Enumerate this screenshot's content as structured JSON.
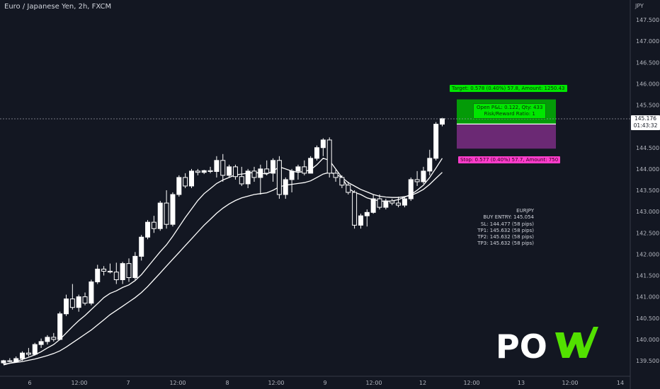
{
  "header": {
    "title": "Euro / Japanese Yen, 2h, FXCM",
    "currency": "JPY"
  },
  "price_scale": {
    "ticks": [
      "147.500",
      "147.000",
      "146.500",
      "146.000",
      "145.500",
      "145.000",
      "144.500",
      "144.000",
      "143.500",
      "143.000",
      "142.500",
      "142.000",
      "141.500",
      "141.000",
      "140.500",
      "140.000",
      "139.500"
    ],
    "last_price": "145.176",
    "countdown": "01:43:32"
  },
  "time_scale": {
    "ticks": [
      "6",
      "12:00",
      "7",
      "12:00",
      "8",
      "12:00",
      "9",
      "12:00",
      "12",
      "12:00",
      "13",
      "12:00",
      "14"
    ]
  },
  "position_tool": {
    "target_text": "Target: 0.578 (0.40%) 57.8, Amount: 1250.43",
    "stop_text": "Stop: 0.577 (0.40%) 57.7, Amount: 750",
    "pnl_line1": "Open P&L: 0.122, Qty: 433",
    "pnl_line2": "Risk/Reward Ratio: 1",
    "entry": 145.054,
    "target": 145.632,
    "stop": 144.477,
    "profit_color": "#00c800",
    "loss_color": "#7b2d82"
  },
  "signal_info": {
    "symbol": "EURJPY",
    "buy_entry": "BUY ENTRY: 145.054",
    "sl": "SL: 144.477 (58 pips)",
    "tp1": "TP1: 145.632 (58 pips)",
    "tp2": "TP2: 145.632 (58 pips)",
    "tp3": "TP3: 145.632 (58 pips)"
  },
  "logo": {
    "text": "PO",
    "accent_color": "#52e000"
  },
  "colors": {
    "background": "#131722",
    "candle_up": "#ffffff",
    "candle_down": "#ffffff",
    "ma_color": "#ffffff"
  },
  "chart_data": {
    "type": "candlestick",
    "symbol": "EURJPY",
    "interval": "2h",
    "ylim": [
      139.4,
      147.8
    ],
    "candles": [
      {
        "o": 139.45,
        "h": 139.52,
        "l": 139.42,
        "c": 139.5
      },
      {
        "o": 139.5,
        "h": 139.56,
        "l": 139.46,
        "c": 139.48
      },
      {
        "o": 139.48,
        "h": 139.6,
        "l": 139.45,
        "c": 139.55
      },
      {
        "o": 139.55,
        "h": 139.72,
        "l": 139.5,
        "c": 139.68
      },
      {
        "o": 139.68,
        "h": 139.8,
        "l": 139.6,
        "c": 139.65
      },
      {
        "o": 139.65,
        "h": 139.92,
        "l": 139.62,
        "c": 139.88
      },
      {
        "o": 139.88,
        "h": 140.02,
        "l": 139.8,
        "c": 139.95
      },
      {
        "o": 139.95,
        "h": 140.1,
        "l": 139.88,
        "c": 140.05
      },
      {
        "o": 140.05,
        "h": 140.15,
        "l": 139.95,
        "c": 140.0
      },
      {
        "o": 140.0,
        "h": 140.65,
        "l": 139.98,
        "c": 140.6
      },
      {
        "o": 140.6,
        "h": 141.05,
        "l": 140.55,
        "c": 140.95
      },
      {
        "o": 140.95,
        "h": 141.3,
        "l": 140.7,
        "c": 140.75
      },
      {
        "o": 140.75,
        "h": 141.05,
        "l": 140.65,
        "c": 141.0
      },
      {
        "o": 141.0,
        "h": 141.1,
        "l": 140.8,
        "c": 140.85
      },
      {
        "o": 140.85,
        "h": 141.4,
        "l": 140.8,
        "c": 141.35
      },
      {
        "o": 141.35,
        "h": 141.75,
        "l": 141.3,
        "c": 141.65
      },
      {
        "o": 141.65,
        "h": 141.72,
        "l": 141.5,
        "c": 141.6
      },
      {
        "o": 141.6,
        "h": 141.78,
        "l": 141.55,
        "c": 141.58
      },
      {
        "o": 141.58,
        "h": 141.8,
        "l": 141.3,
        "c": 141.4
      },
      {
        "o": 141.4,
        "h": 141.82,
        "l": 141.3,
        "c": 141.78
      },
      {
        "o": 141.78,
        "h": 141.9,
        "l": 141.35,
        "c": 141.45
      },
      {
        "o": 141.45,
        "h": 142.05,
        "l": 141.4,
        "c": 141.95
      },
      {
        "o": 141.95,
        "h": 142.45,
        "l": 141.85,
        "c": 142.4
      },
      {
        "o": 142.4,
        "h": 142.8,
        "l": 142.35,
        "c": 142.75
      },
      {
        "o": 142.75,
        "h": 142.9,
        "l": 142.5,
        "c": 142.6
      },
      {
        "o": 142.6,
        "h": 143.25,
        "l": 142.55,
        "c": 143.2
      },
      {
        "o": 143.2,
        "h": 143.5,
        "l": 142.6,
        "c": 142.7
      },
      {
        "o": 142.7,
        "h": 143.45,
        "l": 142.65,
        "c": 143.4
      },
      {
        "o": 143.4,
        "h": 143.85,
        "l": 143.35,
        "c": 143.8
      },
      {
        "o": 143.8,
        "h": 143.9,
        "l": 143.55,
        "c": 143.6
      },
      {
        "o": 143.6,
        "h": 144.0,
        "l": 143.55,
        "c": 143.95
      },
      {
        "o": 143.95,
        "h": 144.0,
        "l": 143.85,
        "c": 143.92
      },
      {
        "o": 143.92,
        "h": 143.98,
        "l": 143.88,
        "c": 143.96
      },
      {
        "o": 143.96,
        "h": 144.05,
        "l": 143.9,
        "c": 143.94
      },
      {
        "o": 143.94,
        "h": 144.3,
        "l": 143.8,
        "c": 144.2
      },
      {
        "o": 144.2,
        "h": 144.35,
        "l": 143.7,
        "c": 143.85
      },
      {
        "o": 143.85,
        "h": 144.1,
        "l": 143.8,
        "c": 144.05
      },
      {
        "o": 144.05,
        "h": 144.1,
        "l": 143.75,
        "c": 143.82
      },
      {
        "o": 143.82,
        "h": 144.05,
        "l": 143.6,
        "c": 143.65
      },
      {
        "o": 143.65,
        "h": 144.0,
        "l": 143.55,
        "c": 143.95
      },
      {
        "o": 143.95,
        "h": 144.05,
        "l": 143.7,
        "c": 143.8
      },
      {
        "o": 143.8,
        "h": 144.1,
        "l": 143.4,
        "c": 144.0
      },
      {
        "o": 144.0,
        "h": 144.2,
        "l": 143.85,
        "c": 143.9
      },
      {
        "o": 143.9,
        "h": 144.25,
        "l": 143.7,
        "c": 144.2
      },
      {
        "o": 144.2,
        "h": 144.3,
        "l": 143.3,
        "c": 143.4
      },
      {
        "o": 143.4,
        "h": 143.8,
        "l": 143.3,
        "c": 143.75
      },
      {
        "o": 143.75,
        "h": 144.0,
        "l": 143.45,
        "c": 143.95
      },
      {
        "o": 143.95,
        "h": 144.1,
        "l": 143.75,
        "c": 144.05
      },
      {
        "o": 144.05,
        "h": 144.2,
        "l": 143.85,
        "c": 143.9
      },
      {
        "o": 143.9,
        "h": 144.3,
        "l": 143.9,
        "c": 144.25
      },
      {
        "o": 144.25,
        "h": 144.55,
        "l": 144.2,
        "c": 144.5
      },
      {
        "o": 144.5,
        "h": 144.72,
        "l": 144.3,
        "c": 144.68
      },
      {
        "o": 144.68,
        "h": 144.74,
        "l": 143.8,
        "c": 143.9
      },
      {
        "o": 143.9,
        "h": 143.98,
        "l": 143.7,
        "c": 143.8
      },
      {
        "o": 143.8,
        "h": 143.85,
        "l": 143.55,
        "c": 143.62
      },
      {
        "o": 143.62,
        "h": 143.7,
        "l": 143.4,
        "c": 143.45
      },
      {
        "o": 143.45,
        "h": 143.5,
        "l": 142.6,
        "c": 142.68
      },
      {
        "o": 142.68,
        "h": 142.95,
        "l": 142.6,
        "c": 142.9
      },
      {
        "o": 142.9,
        "h": 143.05,
        "l": 142.65,
        "c": 142.98
      },
      {
        "o": 142.98,
        "h": 143.4,
        "l": 142.95,
        "c": 143.3
      },
      {
        "o": 143.3,
        "h": 143.4,
        "l": 143.05,
        "c": 143.1
      },
      {
        "o": 143.1,
        "h": 143.3,
        "l": 143.05,
        "c": 143.25
      },
      {
        "o": 143.25,
        "h": 143.3,
        "l": 143.15,
        "c": 143.2
      },
      {
        "o": 143.2,
        "h": 143.35,
        "l": 143.1,
        "c": 143.15
      },
      {
        "o": 143.15,
        "h": 143.35,
        "l": 143.1,
        "c": 143.3
      },
      {
        "o": 143.3,
        "h": 143.8,
        "l": 143.25,
        "c": 143.75
      },
      {
        "o": 143.75,
        "h": 143.95,
        "l": 143.6,
        "c": 143.7
      },
      {
        "o": 143.7,
        "h": 144.05,
        "l": 143.65,
        "c": 143.95
      },
      {
        "o": 143.95,
        "h": 144.45,
        "l": 143.85,
        "c": 144.25
      },
      {
        "o": 144.25,
        "h": 145.1,
        "l": 144.2,
        "c": 145.05
      },
      {
        "o": 145.05,
        "h": 145.2,
        "l": 145.0,
        "c": 145.18
      }
    ],
    "moving_averages": [
      {
        "name": "",
        "values": [
          139.4,
          139.44,
          139.48,
          139.53,
          139.58,
          139.64,
          139.71,
          139.8,
          139.88,
          140.0,
          140.15,
          140.3,
          140.44,
          140.56,
          140.7,
          140.84,
          140.98,
          141.08,
          141.14,
          141.22,
          141.28,
          141.38,
          141.52,
          141.7,
          141.88,
          142.06,
          142.22,
          142.42,
          142.64,
          142.86,
          143.06,
          143.26,
          143.42,
          143.54,
          143.66,
          143.74,
          143.8,
          143.86,
          143.88,
          143.9,
          143.92,
          143.9,
          143.88,
          143.95,
          144.05,
          144.0,
          143.95,
          143.92,
          143.94,
          143.98,
          144.1,
          144.25,
          144.2,
          144.0,
          143.8,
          143.55,
          143.45,
          143.4,
          143.32,
          143.28,
          143.25,
          143.24,
          143.25,
          143.28,
          143.34,
          143.4,
          143.5,
          143.62,
          143.8,
          144.02,
          144.25
        ]
      },
      {
        "name": "",
        "values": [
          139.42,
          139.44,
          139.46,
          139.48,
          139.51,
          139.54,
          139.58,
          139.62,
          139.67,
          139.73,
          139.82,
          139.92,
          140.02,
          140.12,
          140.22,
          140.34,
          140.46,
          140.58,
          140.68,
          140.78,
          140.88,
          140.98,
          141.1,
          141.24,
          141.4,
          141.56,
          141.72,
          141.88,
          142.04,
          142.2,
          142.36,
          142.52,
          142.68,
          142.82,
          142.96,
          143.08,
          143.18,
          143.26,
          143.32,
          143.36,
          143.4,
          143.42,
          143.44,
          143.5,
          143.58,
          143.62,
          143.64,
          143.66,
          143.68,
          143.72,
          143.8,
          143.88,
          143.92,
          143.88,
          143.8,
          143.68,
          143.6,
          143.52,
          143.46,
          143.4,
          143.36,
          143.34,
          143.33,
          143.33,
          143.35,
          143.38,
          143.44,
          143.52,
          143.64,
          143.78,
          143.92
        ]
      }
    ]
  }
}
